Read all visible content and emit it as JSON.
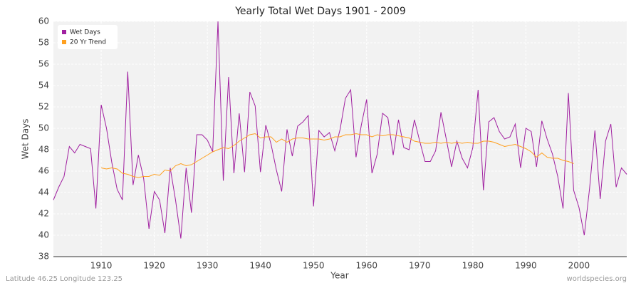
{
  "chart_data": {
    "type": "line",
    "title": "Yearly Total Wet Days 1901 - 2009",
    "x_label": "Year",
    "y_label": "Wet Days",
    "footer_left": "Latitude 46.25 Longitude 123.25",
    "footer_right": "worldspecies.org",
    "legend": "top-left",
    "grid": true,
    "xlim": [
      1901,
      2009
    ],
    "xticks": [
      1910,
      1920,
      1930,
      1940,
      1950,
      1960,
      1970,
      1980,
      1990,
      2000
    ],
    "ylim": [
      38,
      60
    ],
    "yticks": [
      38,
      40,
      42,
      44,
      46,
      48,
      50,
      52,
      54,
      56,
      58,
      60
    ],
    "x": [
      1901,
      1902,
      1903,
      1904,
      1905,
      1906,
      1907,
      1908,
      1909,
      1910,
      1911,
      1912,
      1913,
      1914,
      1915,
      1916,
      1917,
      1918,
      1919,
      1920,
      1921,
      1922,
      1923,
      1924,
      1925,
      1926,
      1927,
      1928,
      1929,
      1930,
      1931,
      1932,
      1933,
      1934,
      1935,
      1936,
      1937,
      1938,
      1939,
      1940,
      1941,
      1942,
      1943,
      1944,
      1945,
      1946,
      1947,
      1948,
      1949,
      1950,
      1951,
      1952,
      1953,
      1954,
      1955,
      1956,
      1957,
      1958,
      1959,
      1960,
      1961,
      1962,
      1963,
      1964,
      1965,
      1966,
      1967,
      1968,
      1969,
      1970,
      1971,
      1972,
      1973,
      1974,
      1975,
      1976,
      1977,
      1978,
      1979,
      1980,
      1981,
      1982,
      1983,
      1984,
      1985,
      1986,
      1987,
      1988,
      1989,
      1990,
      1991,
      1992,
      1993,
      1994,
      1995,
      1996,
      1997,
      1998,
      1999,
      2000,
      2001,
      2002,
      2003,
      2004,
      2005,
      2006,
      2007,
      2008,
      2009
    ],
    "series": [
      {
        "name": "Wet Days",
        "color": "#a020a0",
        "values": [
          43.3,
          44.5,
          45.5,
          48.3,
          47.7,
          48.5,
          48.3,
          48.1,
          42.5,
          52.2,
          50.0,
          46.8,
          44.3,
          43.3,
          55.3,
          44.7,
          47.5,
          45.3,
          40.6,
          44.1,
          43.3,
          40.2,
          46.3,
          43.3,
          39.7,
          46.3,
          42.1,
          49.4,
          49.4,
          48.9,
          47.8,
          60.0,
          45.1,
          54.8,
          45.8,
          51.4,
          45.9,
          53.4,
          52.1,
          45.9,
          50.3,
          48.5,
          46.1,
          44.1,
          49.9,
          47.4,
          50.2,
          50.6,
          51.2,
          42.7,
          49.8,
          49.2,
          49.6,
          47.9,
          49.9,
          52.8,
          53.6,
          47.3,
          50.3,
          52.7,
          45.8,
          47.6,
          51.4,
          51.0,
          47.5,
          50.8,
          48.2,
          48.0,
          50.8,
          48.8,
          46.9,
          46.9,
          47.9,
          51.5,
          49.0,
          46.4,
          48.8,
          47.2,
          46.3,
          48.2,
          53.6,
          44.2,
          50.6,
          51.0,
          49.7,
          49.0,
          49.2,
          50.4,
          46.3,
          50.0,
          49.7,
          46.4,
          50.7,
          49.0,
          47.6,
          45.5,
          42.5,
          53.3,
          44.2,
          42.6,
          40.0,
          44.4,
          49.8,
          43.4,
          48.8,
          50.4,
          44.5,
          46.3,
          45.7
        ]
      },
      {
        "name": "20 Yr Trend",
        "color": "#ffa020",
        "values": [
          null,
          null,
          null,
          null,
          null,
          null,
          null,
          null,
          null,
          46.3,
          46.2,
          46.3,
          46.2,
          45.8,
          45.7,
          45.5,
          45.4,
          45.5,
          45.5,
          45.7,
          45.6,
          46.1,
          46.0,
          46.5,
          46.7,
          46.5,
          46.6,
          46.9,
          47.2,
          47.5,
          47.8,
          48.0,
          48.2,
          48.1,
          48.4,
          48.8,
          49.1,
          49.4,
          49.5,
          49.1,
          49.2,
          49.2,
          48.7,
          49.0,
          48.7,
          49.0,
          49.1,
          49.1,
          49.0,
          49.0,
          49.0,
          48.9,
          49.0,
          49.2,
          49.2,
          49.4,
          49.4,
          49.5,
          49.4,
          49.4,
          49.2,
          49.4,
          49.3,
          49.4,
          49.4,
          49.3,
          49.2,
          49.1,
          48.8,
          48.7,
          48.6,
          48.6,
          48.7,
          48.6,
          48.7,
          48.6,
          48.7,
          48.6,
          48.7,
          48.6,
          48.6,
          48.8,
          48.8,
          48.7,
          48.5,
          48.3,
          48.4,
          48.5,
          48.3,
          48.1,
          47.8,
          47.3,
          47.7,
          47.3,
          47.2,
          47.2,
          47.0,
          46.9,
          46.7,
          null,
          null,
          null,
          null,
          null,
          null,
          null,
          null,
          null,
          null
        ]
      }
    ]
  }
}
